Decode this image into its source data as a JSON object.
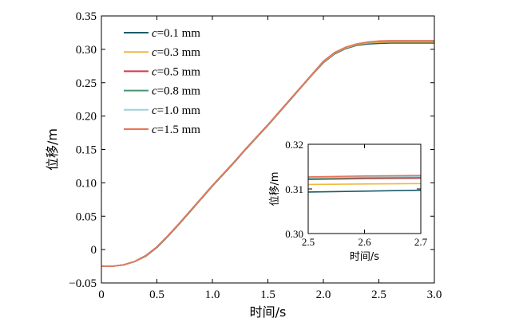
{
  "chart_data": [
    {
      "type": "line",
      "xlabel": "时间/s",
      "ylabel": "位移/m",
      "xlim": [
        0,
        3.0
      ],
      "ylim": [
        -0.05,
        0.35
      ],
      "xticks": [
        "0",
        "0.5",
        "1.0",
        "1.5",
        "2.0",
        "2.5",
        "3.0"
      ],
      "yticks": [
        "−0.05",
        "0",
        "0.05",
        "0.10",
        "0.15",
        "0.20",
        "0.25",
        "0.30",
        "0.35"
      ],
      "grid": false,
      "legend": "top-left",
      "series": [
        {
          "name_var": "c",
          "name_rest": "=0.1 mm",
          "color": "#1b5b6b",
          "points": [
            [
              0,
              -0.025
            ],
            [
              0.1,
              -0.025
            ],
            [
              0.2,
              -0.023
            ],
            [
              0.3,
              -0.018
            ],
            [
              0.4,
              -0.01
            ],
            [
              0.5,
              0.003
            ],
            [
              0.6,
              0.02
            ],
            [
              0.7,
              0.038
            ],
            [
              0.8,
              0.057
            ],
            [
              0.9,
              0.076
            ],
            [
              1.0,
              0.095
            ],
            [
              1.1,
              0.113
            ],
            [
              1.2,
              0.131
            ],
            [
              1.3,
              0.15
            ],
            [
              1.4,
              0.168
            ],
            [
              1.5,
              0.186
            ],
            [
              1.6,
              0.205
            ],
            [
              1.7,
              0.224
            ],
            [
              1.8,
              0.243
            ],
            [
              1.9,
              0.262
            ],
            [
              2.0,
              0.28
            ],
            [
              2.1,
              0.293
            ],
            [
              2.2,
              0.301
            ],
            [
              2.3,
              0.306
            ],
            [
              2.4,
              0.308
            ],
            [
              2.5,
              0.309
            ],
            [
              2.6,
              0.3095
            ],
            [
              2.7,
              0.3095
            ],
            [
              2.8,
              0.3095
            ],
            [
              2.9,
              0.3095
            ],
            [
              3.0,
              0.3095
            ]
          ]
        },
        {
          "name_var": "c",
          "name_rest": "=0.3 mm",
          "color": "#f0b840",
          "points": [
            [
              0,
              -0.025
            ],
            [
              0.1,
              -0.025
            ],
            [
              0.2,
              -0.023
            ],
            [
              0.3,
              -0.018
            ],
            [
              0.4,
              -0.0095
            ],
            [
              0.5,
              0.0035
            ],
            [
              0.6,
              0.0205
            ],
            [
              0.7,
              0.0385
            ],
            [
              0.8,
              0.0575
            ],
            [
              0.9,
              0.0765
            ],
            [
              1.0,
              0.0955
            ],
            [
              1.1,
              0.1135
            ],
            [
              1.2,
              0.1315
            ],
            [
              1.3,
              0.1505
            ],
            [
              1.4,
              0.1685
            ],
            [
              1.5,
              0.1865
            ],
            [
              1.6,
              0.2055
            ],
            [
              1.7,
              0.2245
            ],
            [
              1.8,
              0.2435
            ],
            [
              1.9,
              0.2625
            ],
            [
              2.0,
              0.281
            ],
            [
              2.1,
              0.294
            ],
            [
              2.2,
              0.302
            ],
            [
              2.3,
              0.307
            ],
            [
              2.4,
              0.3095
            ],
            [
              2.5,
              0.3105
            ],
            [
              2.6,
              0.311
            ],
            [
              2.7,
              0.311
            ],
            [
              2.8,
              0.311
            ],
            [
              2.9,
              0.311
            ],
            [
              3.0,
              0.311
            ]
          ]
        },
        {
          "name_var": "c",
          "name_rest": "=0.5 mm",
          "color": "#d8384a",
          "points": [
            [
              0,
              -0.025
            ],
            [
              0.1,
              -0.025
            ],
            [
              0.2,
              -0.0228
            ],
            [
              0.3,
              -0.0178
            ],
            [
              0.4,
              -0.009
            ],
            [
              0.5,
              0.004
            ],
            [
              0.6,
              0.021
            ],
            [
              0.7,
              0.039
            ],
            [
              0.8,
              0.058
            ],
            [
              0.9,
              0.077
            ],
            [
              1.0,
              0.096
            ],
            [
              1.1,
              0.114
            ],
            [
              1.2,
              0.132
            ],
            [
              1.3,
              0.151
            ],
            [
              1.4,
              0.169
            ],
            [
              1.5,
              0.187
            ],
            [
              1.6,
              0.206
            ],
            [
              1.7,
              0.225
            ],
            [
              1.8,
              0.244
            ],
            [
              1.9,
              0.263
            ],
            [
              2.0,
              0.282
            ],
            [
              2.1,
              0.295
            ],
            [
              2.2,
              0.303
            ],
            [
              2.3,
              0.308
            ],
            [
              2.4,
              0.3105
            ],
            [
              2.5,
              0.3118
            ],
            [
              2.6,
              0.3122
            ],
            [
              2.7,
              0.3124
            ],
            [
              2.8,
              0.3124
            ],
            [
              2.9,
              0.3124
            ],
            [
              3.0,
              0.3124
            ]
          ]
        },
        {
          "name_var": "c",
          "name_rest": "=0.8 mm",
          "color": "#4a9470",
          "points": [
            [
              0,
              -0.025
            ],
            [
              0.1,
              -0.025
            ],
            [
              0.2,
              -0.0228
            ],
            [
              0.3,
              -0.0178
            ],
            [
              0.4,
              -0.009
            ],
            [
              0.5,
              0.004
            ],
            [
              0.6,
              0.021
            ],
            [
              0.7,
              0.039
            ],
            [
              0.8,
              0.058
            ],
            [
              0.9,
              0.077
            ],
            [
              1.0,
              0.096
            ],
            [
              1.1,
              0.114
            ],
            [
              1.2,
              0.132
            ],
            [
              1.3,
              0.151
            ],
            [
              1.4,
              0.169
            ],
            [
              1.5,
              0.187
            ],
            [
              1.6,
              0.206
            ],
            [
              1.7,
              0.225
            ],
            [
              1.8,
              0.244
            ],
            [
              1.9,
              0.263
            ],
            [
              2.0,
              0.282
            ],
            [
              2.1,
              0.295
            ],
            [
              2.2,
              0.303
            ],
            [
              2.3,
              0.308
            ],
            [
              2.4,
              0.3105
            ],
            [
              2.5,
              0.312
            ],
            [
              2.6,
              0.3124
            ],
            [
              2.7,
              0.3126
            ],
            [
              2.8,
              0.3126
            ],
            [
              2.9,
              0.3126
            ],
            [
              3.0,
              0.3126
            ]
          ]
        },
        {
          "name_var": "c",
          "name_rest": "=1.0 mm",
          "color": "#9cd4dc",
          "points": [
            [
              0,
              -0.025
            ],
            [
              0.1,
              -0.025
            ],
            [
              0.2,
              -0.0228
            ],
            [
              0.3,
              -0.0178
            ],
            [
              0.4,
              -0.009
            ],
            [
              0.5,
              0.004
            ],
            [
              0.6,
              0.021
            ],
            [
              0.7,
              0.039
            ],
            [
              0.8,
              0.058
            ],
            [
              0.9,
              0.077
            ],
            [
              1.0,
              0.096
            ],
            [
              1.1,
              0.114
            ],
            [
              1.2,
              0.132
            ],
            [
              1.3,
              0.151
            ],
            [
              1.4,
              0.169
            ],
            [
              1.5,
              0.187
            ],
            [
              1.6,
              0.206
            ],
            [
              1.7,
              0.225
            ],
            [
              1.8,
              0.244
            ],
            [
              1.9,
              0.263
            ],
            [
              2.0,
              0.282
            ],
            [
              2.1,
              0.295
            ],
            [
              2.2,
              0.303
            ],
            [
              2.3,
              0.308
            ],
            [
              2.4,
              0.3107
            ],
            [
              2.5,
              0.3122
            ],
            [
              2.6,
              0.3127
            ],
            [
              2.7,
              0.3128
            ],
            [
              2.8,
              0.3128
            ],
            [
              2.9,
              0.3128
            ],
            [
              3.0,
              0.3128
            ]
          ]
        },
        {
          "name_var": "c",
          "name_rest": "=1.5 mm",
          "color": "#e8745a",
          "points": [
            [
              0,
              -0.025
            ],
            [
              0.1,
              -0.025
            ],
            [
              0.2,
              -0.0228
            ],
            [
              0.3,
              -0.0178
            ],
            [
              0.4,
              -0.009
            ],
            [
              0.5,
              0.004
            ],
            [
              0.6,
              0.021
            ],
            [
              0.7,
              0.039
            ],
            [
              0.8,
              0.058
            ],
            [
              0.9,
              0.077
            ],
            [
              1.0,
              0.096
            ],
            [
              1.1,
              0.114
            ],
            [
              1.2,
              0.132
            ],
            [
              1.3,
              0.151
            ],
            [
              1.4,
              0.169
            ],
            [
              1.5,
              0.187
            ],
            [
              1.6,
              0.206
            ],
            [
              1.7,
              0.225
            ],
            [
              1.8,
              0.244
            ],
            [
              1.9,
              0.263
            ],
            [
              2.0,
              0.282
            ],
            [
              2.1,
              0.295
            ],
            [
              2.2,
              0.303
            ],
            [
              2.3,
              0.308
            ],
            [
              2.4,
              0.311
            ],
            [
              2.5,
              0.3125
            ],
            [
              2.6,
              0.313
            ],
            [
              2.7,
              0.313
            ],
            [
              2.8,
              0.313
            ],
            [
              2.9,
              0.313
            ],
            [
              3.0,
              0.313
            ]
          ]
        }
      ]
    },
    {
      "type": "line",
      "inset": true,
      "xlabel": "时间/s",
      "ylabel": "位移/m",
      "xlim": [
        2.5,
        2.7
      ],
      "ylim": [
        0.3,
        0.32
      ],
      "xticks": [
        "2.5",
        "2.6",
        "2.7"
      ],
      "yticks": [
        "0.30",
        "0.31",
        "0.32"
      ],
      "grid": false,
      "series": [
        {
          "ref": "c=0.1 mm",
          "color": "#1b5b6b",
          "points": [
            [
              2.5,
              0.3093
            ],
            [
              2.6,
              0.3095
            ],
            [
              2.7,
              0.3097
            ]
          ]
        },
        {
          "ref": "c=0.3 mm",
          "color": "#f0b840",
          "points": [
            [
              2.5,
              0.311
            ],
            [
              2.6,
              0.3111
            ],
            [
              2.7,
              0.3112
            ]
          ]
        },
        {
          "ref": "c=0.5 mm",
          "color": "#d8384a",
          "points": [
            [
              2.5,
              0.3121
            ],
            [
              2.6,
              0.3123
            ],
            [
              2.7,
              0.3124
            ]
          ]
        },
        {
          "ref": "c=0.8 mm",
          "color": "#4a9470",
          "points": [
            [
              2.5,
              0.3123
            ],
            [
              2.6,
              0.3125
            ],
            [
              2.7,
              0.3126
            ]
          ]
        },
        {
          "ref": "c=1.0 mm",
          "color": "#9cd4dc",
          "points": [
            [
              2.5,
              0.3125
            ],
            [
              2.6,
              0.3127
            ],
            [
              2.7,
              0.3128
            ]
          ]
        },
        {
          "ref": "c=1.5 mm",
          "color": "#e8745a",
          "points": [
            [
              2.5,
              0.3127
            ],
            [
              2.6,
              0.3129
            ],
            [
              2.7,
              0.313
            ]
          ]
        }
      ]
    }
  ]
}
